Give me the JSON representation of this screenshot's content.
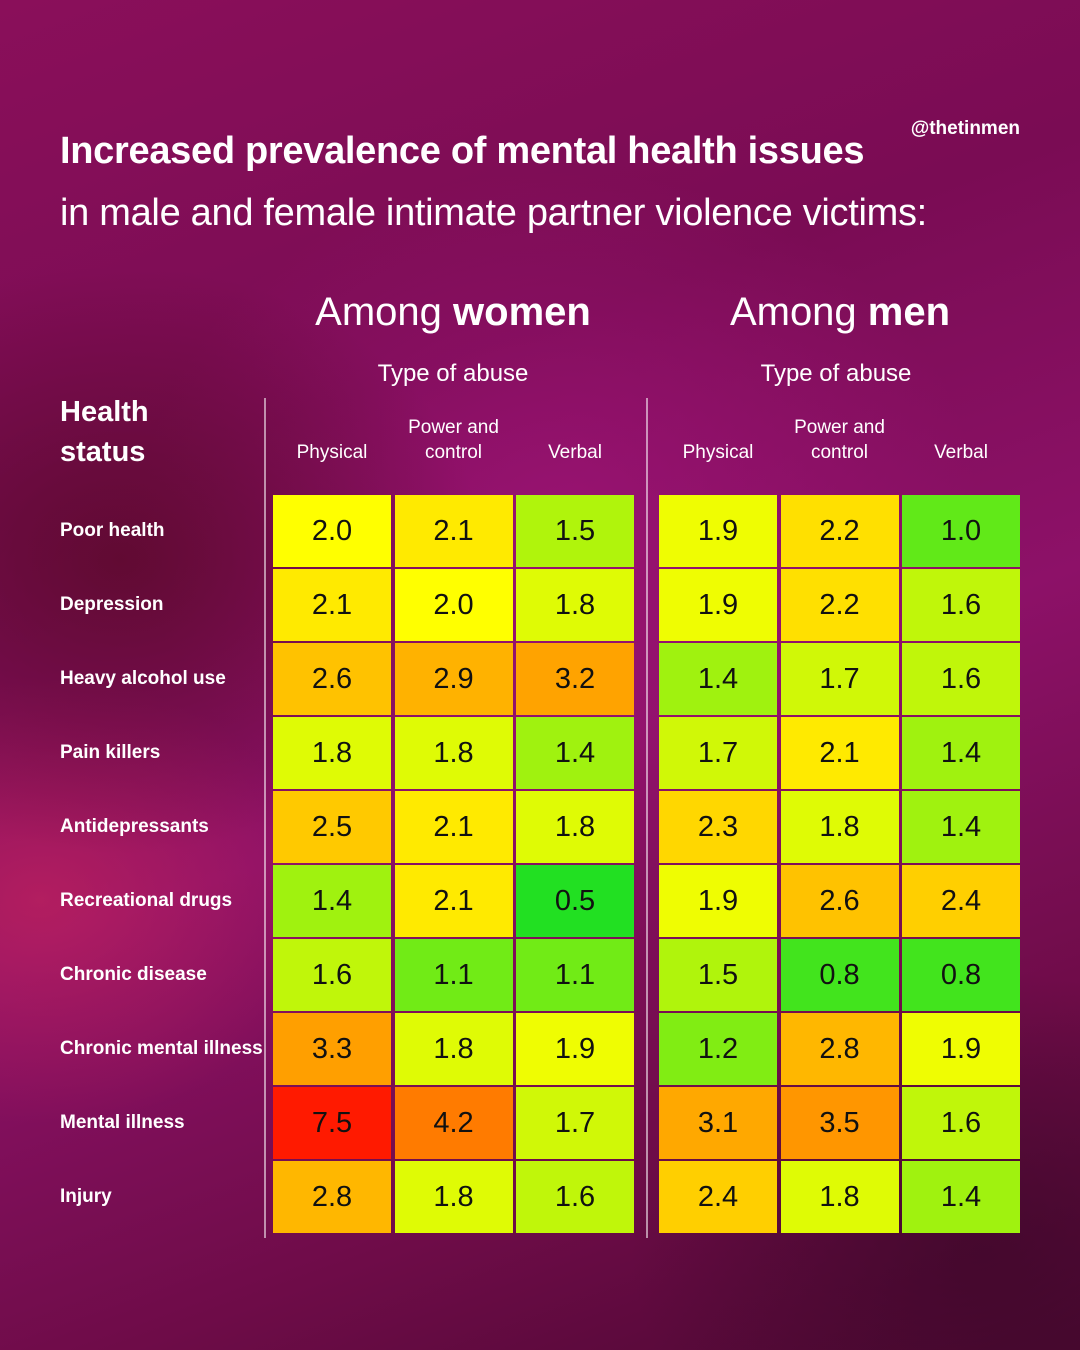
{
  "handle": "@thetinmen",
  "title": "Increased prevalence of mental health issues",
  "subtitle": "in male and female intimate partner violence victims:",
  "row_header": "Health status",
  "groups": [
    {
      "prefix": "Among ",
      "bold": "women",
      "type_label": "Type of abuse"
    },
    {
      "prefix": "Among ",
      "bold": "men",
      "type_label": "Type of abuse"
    }
  ],
  "columns": [
    "Physical",
    "Power and control",
    "Verbal"
  ],
  "chart_data": {
    "type": "heatmap",
    "title": "Increased prevalence of mental health issues in male and female intimate partner violence victims:",
    "rows": [
      "Poor health",
      "Depression",
      "Heavy alcohol use",
      "Pain killers",
      "Antidepressants",
      "Recreational drugs",
      "Chronic disease",
      "Chronic mental illness",
      "Mental illness",
      "Injury"
    ],
    "column_groups": [
      "Among women",
      "Among men"
    ],
    "columns": [
      "Physical",
      "Power and control",
      "Verbal"
    ],
    "women": [
      [
        2.0,
        2.1,
        1.5
      ],
      [
        2.1,
        2.0,
        1.8
      ],
      [
        2.6,
        2.9,
        3.2
      ],
      [
        1.8,
        1.8,
        1.4
      ],
      [
        2.5,
        2.1,
        1.8
      ],
      [
        1.4,
        2.1,
        0.5
      ],
      [
        1.6,
        1.1,
        1.1
      ],
      [
        3.3,
        1.8,
        1.9
      ],
      [
        7.5,
        4.2,
        1.7
      ],
      [
        2.8,
        1.8,
        1.6
      ]
    ],
    "men": [
      [
        1.9,
        2.2,
        1.0
      ],
      [
        1.9,
        2.2,
        1.6
      ],
      [
        1.4,
        1.7,
        1.6
      ],
      [
        1.7,
        2.1,
        1.4
      ],
      [
        2.3,
        1.8,
        1.4
      ],
      [
        1.9,
        2.6,
        2.4
      ],
      [
        1.5,
        0.8,
        0.8
      ],
      [
        1.2,
        2.8,
        1.9
      ],
      [
        3.1,
        3.5,
        1.6
      ],
      [
        2.4,
        1.8,
        1.4
      ]
    ],
    "color_scale": {
      "low": "#22e022",
      "mid": "#ffff00",
      "high": "#ff1a00"
    }
  }
}
